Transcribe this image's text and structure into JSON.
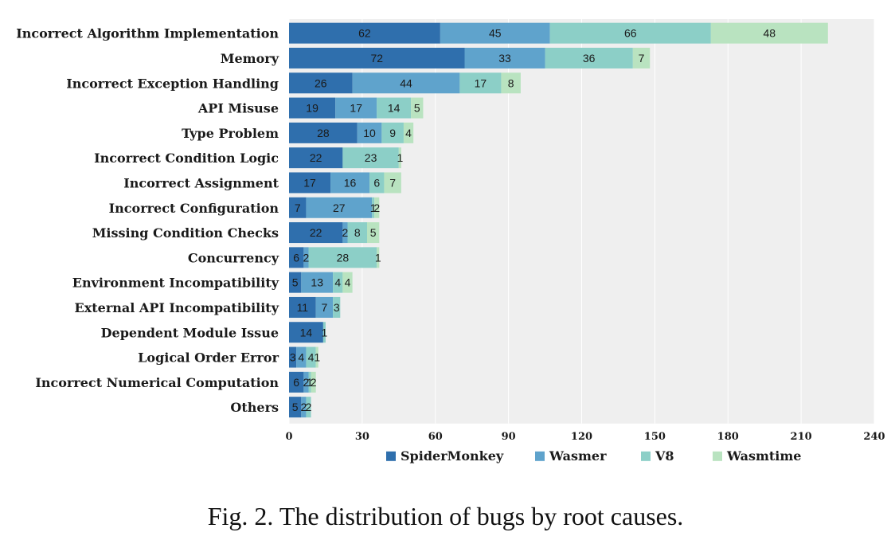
{
  "caption": "Fig. 2.  The distribution of bugs by root causes.",
  "chart_data": {
    "type": "bar",
    "orientation": "horizontal",
    "stacked": true,
    "categories": [
      "Incorrect Algorithm Implementation",
      "Memory",
      "Incorrect Exception Handling",
      "API Misuse",
      "Type Problem",
      "Incorrect Condition Logic",
      "Incorrect Assignment",
      "Incorrect Configuration",
      "Missing Condition Checks",
      "Concurrency",
      "Environment Incompatibility",
      "External API Incompatibility",
      "Dependent Module Issue",
      "Logical Order Error",
      "Incorrect Numerical Computation",
      "Others"
    ],
    "series": [
      {
        "name": "SpiderMonkey",
        "color": "#2f6fad",
        "values": [
          62,
          72,
          26,
          19,
          28,
          22,
          17,
          7,
          22,
          6,
          5,
          11,
          14,
          3,
          6,
          5
        ]
      },
      {
        "name": "Wasmer",
        "color": "#5fa3cc",
        "values": [
          45,
          33,
          44,
          17,
          10,
          0,
          16,
          27,
          2,
          2,
          13,
          7,
          0,
          4,
          2,
          2
        ]
      },
      {
        "name": "V8",
        "color": "#8ccfc7",
        "values": [
          66,
          36,
          17,
          14,
          9,
          23,
          6,
          1,
          8,
          28,
          4,
          3,
          1,
          4,
          1,
          2
        ]
      },
      {
        "name": "Wasmtime",
        "color": "#b9e3c0",
        "values": [
          48,
          7,
          8,
          5,
          4,
          1,
          7,
          2,
          5,
          1,
          4,
          0,
          0,
          1,
          2,
          0
        ]
      }
    ],
    "xlim": [
      0,
      240
    ],
    "xticks": [
      0,
      30,
      60,
      90,
      120,
      150,
      180,
      210,
      240
    ],
    "xlabel": "",
    "ylabel": "",
    "legend_position": "bottom",
    "background": "#efefef"
  }
}
